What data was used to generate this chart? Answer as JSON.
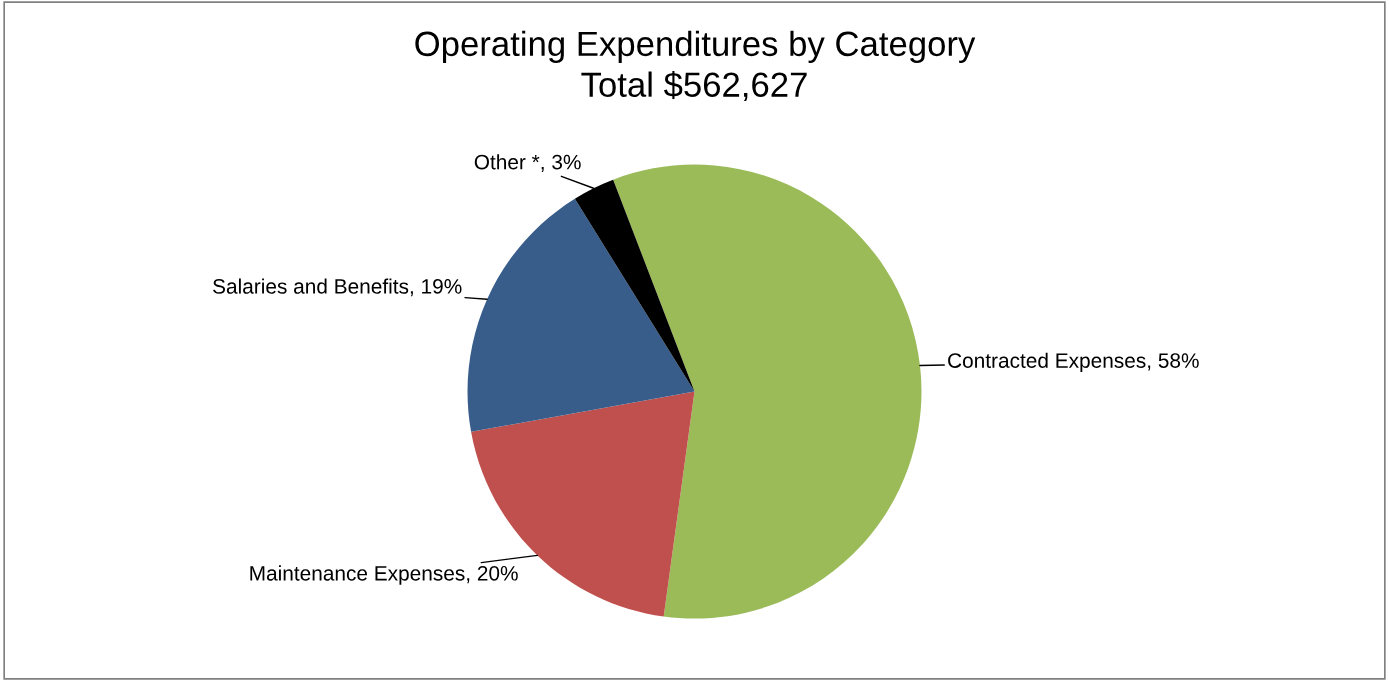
{
  "chart_data": {
    "type": "pie",
    "title": "Operating Expenditures by Category",
    "subtitle": "Total $562,627",
    "categories": [
      "Contracted Expenses",
      "Maintenance Expenses",
      "Salaries and Benefits",
      "Other *"
    ],
    "values": [
      58,
      20,
      19,
      3
    ],
    "value_labels": [
      "58%",
      "20%",
      "19%",
      "3%"
    ],
    "colors": [
      "#9bbb59",
      "#c0504d",
      "#385d8a",
      "#000000"
    ],
    "legend": false
  }
}
